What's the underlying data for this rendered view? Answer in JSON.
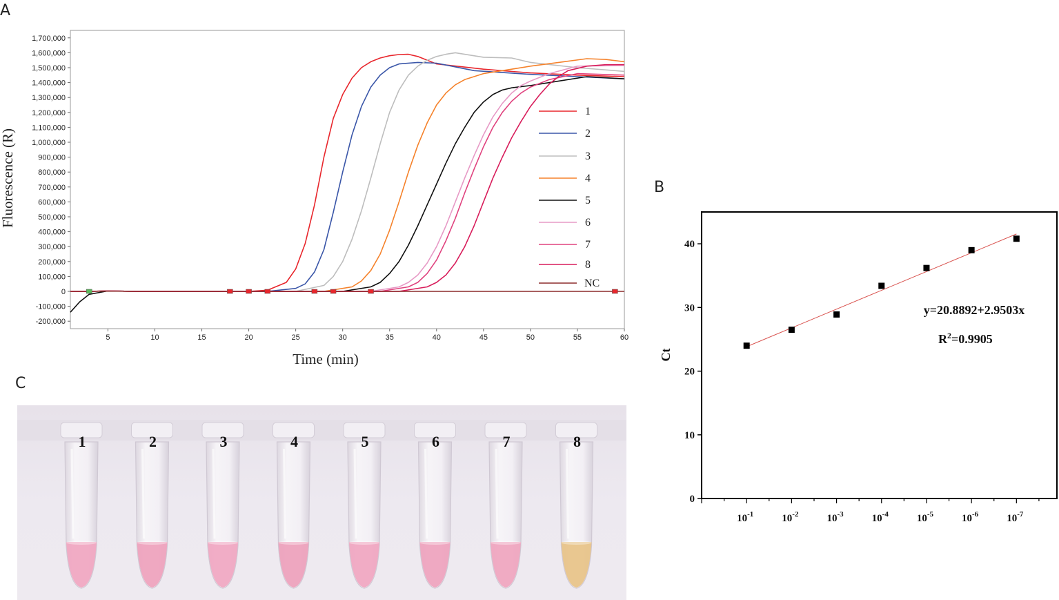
{
  "panels": {
    "a": "A",
    "b": "B",
    "c": "C"
  },
  "chart_data": [
    {
      "type": "line",
      "panel": "A",
      "xlabel": "Time (min)",
      "ylabel": "Fluorescence (R)",
      "xlim": [
        1,
        60
      ],
      "ylim": [
        -250000,
        1750000
      ],
      "xticks": [
        5,
        10,
        15,
        20,
        25,
        30,
        35,
        40,
        45,
        50,
        55,
        60
      ],
      "yticks": [
        -200000,
        -100000,
        0,
        100000,
        200000,
        300000,
        400000,
        500000,
        600000,
        700000,
        800000,
        900000,
        1000000,
        1100000,
        1200000,
        1300000,
        1400000,
        1500000,
        1600000,
        1700000
      ],
      "ytick_labels": [
        "-200,000",
        "-100,000",
        "0",
        "100,000",
        "200,000",
        "300,000",
        "400,000",
        "500,000",
        "600,000",
        "700,000",
        "800,000",
        "900,000",
        "1,000,000",
        "1,100,000",
        "1,200,000",
        "1,300,000",
        "1,400,000",
        "1,500,000",
        "1,600,000",
        "1,700,000"
      ],
      "series": [
        {
          "name": "1",
          "color": "#e8262c",
          "x": [
            1,
            2,
            3,
            5,
            8,
            15,
            20,
            22,
            24,
            25,
            26,
            27,
            28,
            29,
            30,
            31,
            32,
            33,
            34,
            35,
            36,
            37,
            38,
            40,
            45,
            50,
            55,
            60
          ],
          "values": [
            0,
            0,
            0,
            3000,
            0,
            0,
            0,
            8000,
            60000,
            150000,
            320000,
            580000,
            900000,
            1160000,
            1320000,
            1430000,
            1500000,
            1540000,
            1565000,
            1580000,
            1588000,
            1590000,
            1575000,
            1525000,
            1490000,
            1465000,
            1450000,
            1440000
          ]
        },
        {
          "name": "2",
          "color": "#3a56a8",
          "x": [
            1,
            3,
            5,
            8,
            15,
            22,
            25,
            26,
            27,
            28,
            29,
            30,
            31,
            32,
            33,
            34,
            35,
            36,
            38,
            40,
            44,
            50,
            55,
            60
          ],
          "values": [
            0,
            0,
            3000,
            0,
            0,
            0,
            20000,
            50000,
            130000,
            280000,
            530000,
            800000,
            1050000,
            1240000,
            1370000,
            1450000,
            1500000,
            1525000,
            1535000,
            1530000,
            1480000,
            1455000,
            1440000,
            1425000
          ]
        },
        {
          "name": "3",
          "color": "#bdbdbd",
          "x": [
            1,
            3,
            5,
            8,
            15,
            25,
            28,
            29,
            30,
            31,
            32,
            33,
            34,
            35,
            36,
            37,
            38,
            39,
            40,
            41,
            42,
            45,
            48,
            50,
            55,
            60
          ],
          "values": [
            0,
            0,
            3000,
            0,
            0,
            0,
            40000,
            100000,
            200000,
            350000,
            540000,
            760000,
            990000,
            1200000,
            1350000,
            1450000,
            1510000,
            1550000,
            1575000,
            1590000,
            1600000,
            1570000,
            1565000,
            1535000,
            1500000,
            1475000
          ]
        },
        {
          "name": "4",
          "color": "#f5822b",
          "x": [
            1,
            3,
            5,
            8,
            15,
            28,
            31,
            32,
            33,
            34,
            35,
            36,
            37,
            38,
            39,
            40,
            41,
            42,
            43,
            45,
            48,
            50,
            53,
            56,
            58,
            60
          ],
          "values": [
            0,
            0,
            3000,
            0,
            0,
            0,
            30000,
            70000,
            140000,
            250000,
            410000,
            600000,
            800000,
            980000,
            1130000,
            1250000,
            1330000,
            1385000,
            1420000,
            1460000,
            1490000,
            1510000,
            1535000,
            1560000,
            1555000,
            1540000
          ]
        },
        {
          "name": "5",
          "color": "#111111",
          "x": [
            1,
            2,
            3,
            5,
            8,
            15,
            30,
            33,
            34,
            35,
            36,
            37,
            38,
            39,
            40,
            41,
            42,
            43,
            44,
            45,
            46,
            47,
            48,
            50,
            53,
            56,
            60
          ],
          "values": [
            -140000,
            -70000,
            -20000,
            3000,
            0,
            0,
            0,
            30000,
            60000,
            120000,
            200000,
            310000,
            440000,
            580000,
            720000,
            860000,
            990000,
            1100000,
            1200000,
            1270000,
            1320000,
            1350000,
            1365000,
            1380000,
            1410000,
            1440000,
            1425000
          ]
        },
        {
          "name": "6",
          "color": "#e79ac6",
          "x": [
            1,
            3,
            5,
            8,
            15,
            33,
            36,
            37,
            38,
            39,
            40,
            41,
            42,
            43,
            44,
            45,
            46,
            47,
            48,
            49,
            50,
            52,
            55,
            60
          ],
          "values": [
            0,
            0,
            3000,
            0,
            0,
            0,
            30000,
            60000,
            110000,
            190000,
            300000,
            440000,
            600000,
            760000,
            910000,
            1050000,
            1170000,
            1260000,
            1330000,
            1380000,
            1410000,
            1460000,
            1510000,
            1515000
          ]
        },
        {
          "name": "7",
          "color": "#e0437f",
          "x": [
            1,
            3,
            5,
            8,
            15,
            34,
            37,
            38,
            39,
            40,
            41,
            42,
            43,
            44,
            45,
            46,
            47,
            48,
            49,
            50,
            52,
            55,
            60
          ],
          "values": [
            0,
            0,
            3000,
            0,
            0,
            0,
            30000,
            60000,
            120000,
            210000,
            340000,
            490000,
            660000,
            820000,
            970000,
            1100000,
            1200000,
            1275000,
            1330000,
            1370000,
            1420000,
            1460000,
            1450000
          ]
        },
        {
          "name": "8",
          "color": "#d81d5b",
          "x": [
            1,
            3,
            5,
            8,
            15,
            36,
            39,
            40,
            41,
            42,
            43,
            44,
            45,
            46,
            47,
            48,
            49,
            50,
            51,
            52,
            53,
            54,
            56,
            58,
            60
          ],
          "values": [
            0,
            0,
            3000,
            0,
            0,
            0,
            30000,
            60000,
            110000,
            190000,
            300000,
            440000,
            600000,
            760000,
            900000,
            1030000,
            1140000,
            1240000,
            1320000,
            1390000,
            1440000,
            1480000,
            1510000,
            1520000,
            1520000
          ]
        },
        {
          "name": "NC",
          "color": "#8b2a2a",
          "x": [
            1,
            3,
            5,
            8,
            15,
            30,
            45,
            60
          ],
          "values": [
            0,
            0,
            2000,
            0,
            0,
            0,
            0,
            0
          ]
        }
      ],
      "markers": [
        {
          "x": 3,
          "color": "#5cb85c"
        },
        {
          "x": 18,
          "color": "#e8262c"
        },
        {
          "x": 20,
          "color": "#e8262c"
        },
        {
          "x": 22,
          "color": "#e8262c"
        },
        {
          "x": 27,
          "color": "#e8262c"
        },
        {
          "x": 29,
          "color": "#e8262c"
        },
        {
          "x": 33,
          "color": "#e8262c"
        },
        {
          "x": 59,
          "color": "#e8262c"
        }
      ]
    },
    {
      "type": "scatter",
      "panel": "B",
      "xlabel": "",
      "ylabel": "Ct",
      "xlim": [
        0,
        7.9
      ],
      "ylim": [
        0,
        45
      ],
      "yticks": [
        0,
        10,
        20,
        30,
        40
      ],
      "xticks_base": "10",
      "xtick_exponents": [
        "-1",
        "-2",
        "-3",
        "-4",
        "-5",
        "-6",
        "-7"
      ],
      "x": [
        1,
        2,
        3,
        4,
        5,
        6,
        7
      ],
      "values": [
        24.0,
        26.5,
        28.9,
        33.4,
        36.2,
        39.0,
        40.8
      ],
      "fit": {
        "intercept": 20.8892,
        "slope": 2.9503,
        "color": "#d9534f"
      },
      "equation": "y=20.8892+2.9503x",
      "r2_prefix": "R",
      "r2_sup": "2",
      "r2_value": "=0.9905"
    }
  ],
  "photo": {
    "tube_labels": [
      "1",
      "2",
      "3",
      "4",
      "5",
      "6",
      "7",
      "8"
    ],
    "liquid_colors": [
      "#f0a8c2",
      "#eea3be",
      "#f0a9c3",
      "#eda2bd",
      "#f0a8c2",
      "#eea4bf",
      "#efa6c0",
      "#e8c48a"
    ]
  }
}
